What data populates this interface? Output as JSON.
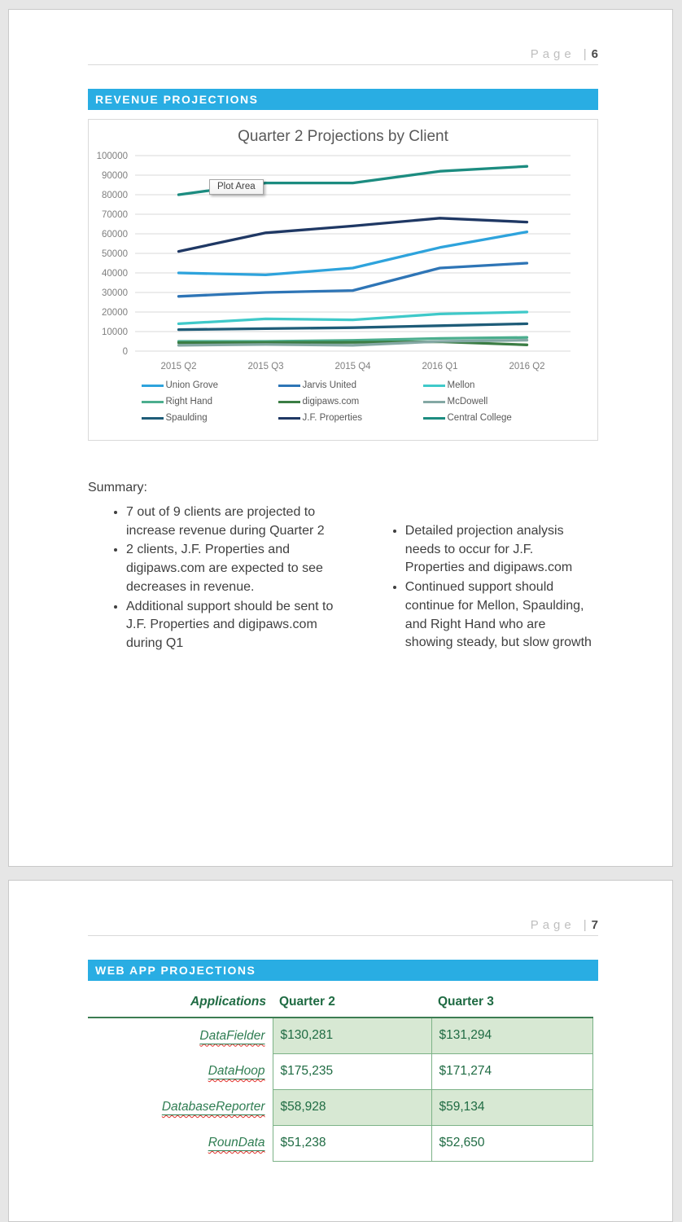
{
  "pages": [
    {
      "header": {
        "label": "Page",
        "separator": "|",
        "number": "6"
      },
      "section_title": "REVENUE PROJECTIONS"
    },
    {
      "header": {
        "label": "Page",
        "separator": "|",
        "number": "7"
      },
      "section_title": "WEB APP PROJECTIONS"
    }
  ],
  "chart_data": {
    "type": "line",
    "title": "Quarter 2 Projections by Client",
    "plot_area_label": "Plot Area",
    "categories": [
      "2015 Q2",
      "2015 Q3",
      "2015 Q4",
      "2016 Q1",
      "2016 Q2"
    ],
    "series": [
      {
        "name": "Union Grove",
        "color": "#2ea3dc",
        "values": [
          40000,
          39000,
          42500,
          53000,
          61000
        ]
      },
      {
        "name": "Jarvis United",
        "color": "#2e75b6",
        "values": [
          28000,
          30000,
          31000,
          42500,
          45000
        ]
      },
      {
        "name": "Mellon",
        "color": "#3fc9c9",
        "values": [
          14000,
          16500,
          16000,
          19000,
          20000
        ]
      },
      {
        "name": "Right Hand",
        "color": "#4cae8e",
        "values": [
          5000,
          5000,
          5500,
          6500,
          7000
        ]
      },
      {
        "name": "digipaws.com",
        "color": "#3b7d44",
        "values": [
          4300,
          4400,
          4500,
          4800,
          3200
        ]
      },
      {
        "name": "McDowell",
        "color": "#84a8a4",
        "values": [
          3000,
          3400,
          3000,
          5000,
          5600
        ]
      },
      {
        "name": "Spaulding",
        "color": "#1e5c78",
        "values": [
          11000,
          11500,
          12000,
          13000,
          14000
        ]
      },
      {
        "name": "J.F. Properties",
        "color": "#1f3864",
        "values": [
          51000,
          60500,
          64000,
          68000,
          66000
        ]
      },
      {
        "name": "Central College",
        "color": "#1c8c80",
        "values": [
          80000,
          86000,
          86000,
          92000,
          94500
        ]
      }
    ],
    "ylim": [
      0,
      100000
    ],
    "ytick_step": 10000,
    "grid": true,
    "legend_position": "bottom",
    "axis_label_color": "#7f7f7f",
    "gridline_color": "#d9d9d9"
  },
  "summary": {
    "heading": "Summary:",
    "left_bullets": [
      "7 out of 9 clients are projected to increase revenue during Quarter 2",
      "2 clients, J.F. Properties and digipaws.com are expected to see decreases in revenue.",
      "Additional support should be sent to J.F. Properties and digipaws.com during Q1"
    ],
    "right_bullets": [
      "Detailed projection analysis needs to occur for J.F. Properties and digipaws.com",
      "Continued support should continue for Mellon, Spaulding, and Right Hand who are showing steady, but slow growth"
    ]
  },
  "table": {
    "headers": {
      "app": "Applications",
      "q2": "Quarter 2",
      "q3": "Quarter 3"
    },
    "rows": [
      {
        "app": "DataFielder",
        "q2": "$130,281",
        "q3": "$131,294"
      },
      {
        "app": "DataHoop",
        "q2": "$175,235",
        "q3": "$171,274"
      },
      {
        "app": "DatabaseReporter",
        "q2": "$58,928",
        "q3": "$59,134"
      },
      {
        "app": "RounData",
        "q2": "$51,238",
        "q3": "$52,650"
      }
    ]
  },
  "colors": {
    "banner_accent": "#29ade3",
    "table_header_green": "#1f6b43",
    "table_border_green": "#7cb287",
    "table_shaded_row": "#d7e8d3",
    "spellcheck_red": "#e0312a",
    "page_background": "#e6e6e6"
  }
}
